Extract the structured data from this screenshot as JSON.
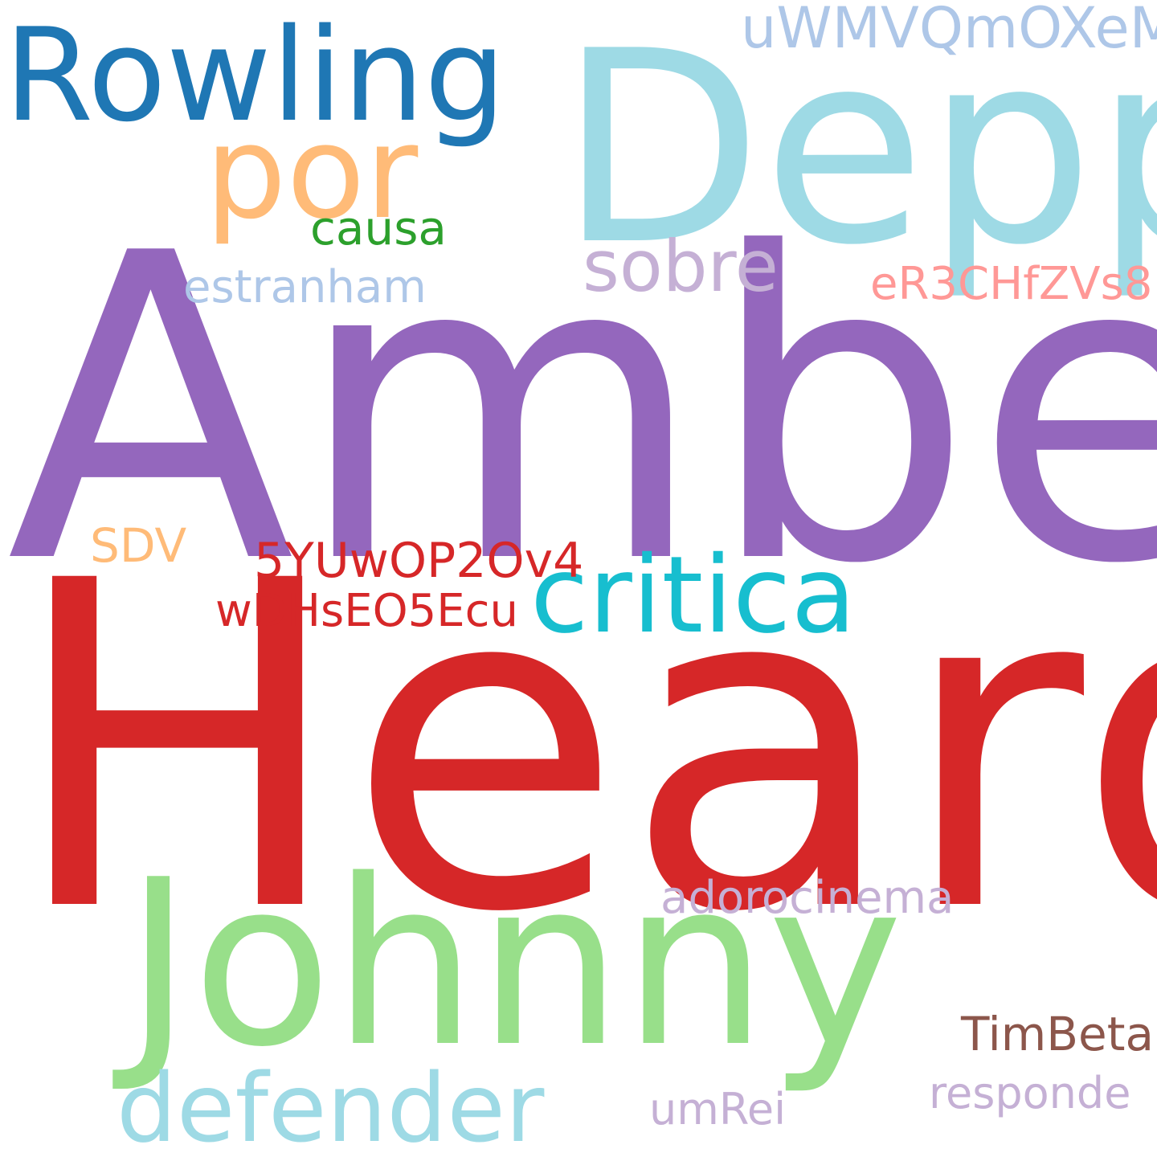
{
  "words": [
    {
      "text": "Amber",
      "color": "#9467bd"
    },
    {
      "text": "Heard",
      "color": "#d62728"
    },
    {
      "text": "Depp",
      "color": "#9edae5"
    },
    {
      "text": "Johnny",
      "color": "#98df8a"
    },
    {
      "text": "Rowling",
      "color": "#1f77b4"
    },
    {
      "text": "por",
      "color": "#ffbb78"
    },
    {
      "text": "critica",
      "color": "#17becf"
    },
    {
      "text": "defender",
      "color": "#9edae5"
    },
    {
      "text": "sobre",
      "color": "#c5b0d5"
    },
    {
      "text": "uWMVQmOXeM",
      "color": "#aec7e8"
    },
    {
      "text": "causa",
      "color": "#2ca02c"
    },
    {
      "text": "estranham",
      "color": "#aec7e8"
    },
    {
      "text": "eR3CHfZVs8",
      "color": "#ff9896"
    },
    {
      "text": "SDV",
      "color": "#ffbb78"
    },
    {
      "text": "5YUwOP2Ov4",
      "color": "#d62728"
    },
    {
      "text": "wDHsEO5Ecu",
      "color": "#d62728"
    },
    {
      "text": "adorocinema",
      "color": "#c5b0d5"
    },
    {
      "text": "TimBeta",
      "color": "#8c564b"
    },
    {
      "text": "responde",
      "color": "#c5b0d5"
    },
    {
      "text": "umRei",
      "color": "#c5b0d5"
    }
  ]
}
